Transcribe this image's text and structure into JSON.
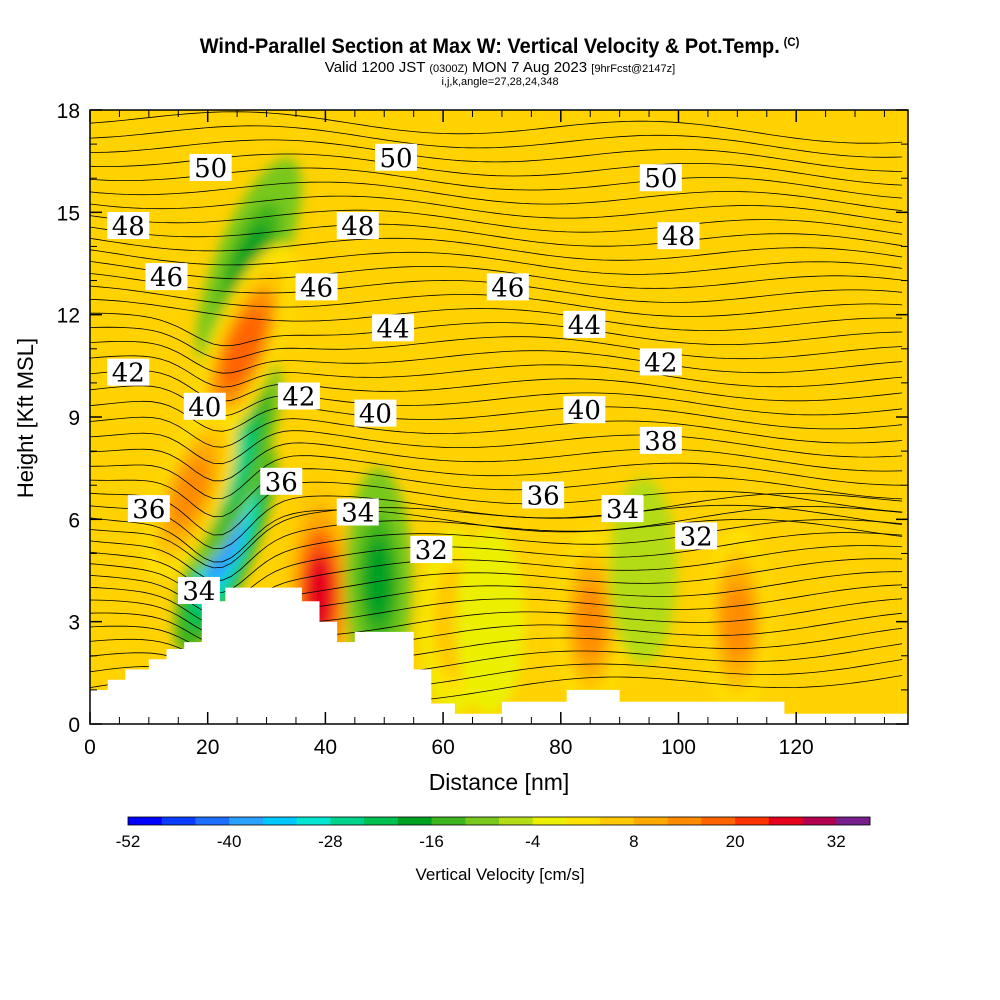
{
  "title": {
    "main": "Wind-Parallel Section at Max W: Vertical Velocity & Pot.Temp.",
    "copyright": "(C)",
    "valid_prefix": "Valid 1200 JST",
    "valid_utc": "(0300Z)",
    "valid_date": "MON 7 Aug 2023",
    "forecast": "[9hrFcst@2147z]",
    "indices": "i,j,k,angle=27,28,24,348"
  },
  "chart_data": {
    "type": "heatmap",
    "xlabel": "Distance [nm]",
    "ylabel": "Height [Kft MSL]",
    "xlim": [
      0,
      139
    ],
    "ylim": [
      0,
      18
    ],
    "x_ticks": [
      0,
      20,
      40,
      60,
      80,
      100,
      120
    ],
    "y_ticks": [
      0,
      3,
      6,
      9,
      12,
      15,
      18
    ],
    "colorbar": {
      "label": "Vertical Velocity [cm/s]",
      "tick_labels": [
        -52,
        -40,
        -28,
        -16,
        -4,
        8,
        20,
        32
      ],
      "bins": 22,
      "colors": [
        "#0000ff",
        "#0a3cff",
        "#1e6eff",
        "#2aa0ff",
        "#00c8ff",
        "#00e6d2",
        "#00d28c",
        "#00c050",
        "#00a020",
        "#3cb41e",
        "#78c81e",
        "#b4dc14",
        "#ecf000",
        "#ffe100",
        "#ffc800",
        "#ffaa00",
        "#ff8c00",
        "#ff6400",
        "#ff3200",
        "#e6001e",
        "#b40050",
        "#781e8c"
      ]
    },
    "terrain_profile": [
      [
        0,
        1
      ],
      [
        3,
        1
      ],
      [
        3,
        1.3
      ],
      [
        6,
        1.3
      ],
      [
        6,
        1.6
      ],
      [
        10,
        1.6
      ],
      [
        10,
        1.9
      ],
      [
        13,
        1.9
      ],
      [
        13,
        2.2
      ],
      [
        16,
        2.2
      ],
      [
        16,
        2.4
      ],
      [
        19,
        2.4
      ],
      [
        19,
        3.6
      ],
      [
        23,
        3.6
      ],
      [
        23,
        4
      ],
      [
        36,
        4
      ],
      [
        36,
        3.6
      ],
      [
        39,
        3.6
      ],
      [
        39,
        3
      ],
      [
        42,
        3
      ],
      [
        42,
        2.4
      ],
      [
        45,
        2.4
      ],
      [
        45,
        2.7
      ],
      [
        55,
        2.7
      ],
      [
        55,
        1.6
      ],
      [
        58,
        1.6
      ],
      [
        58,
        0.6
      ],
      [
        62,
        0.6
      ],
      [
        62,
        0.3
      ],
      [
        70,
        0.3
      ],
      [
        70,
        0.65
      ],
      [
        81,
        0.65
      ],
      [
        81,
        1
      ],
      [
        90,
        1
      ],
      [
        90,
        0.65
      ],
      [
        118,
        0.65
      ],
      [
        118,
        0.3
      ],
      [
        139,
        0.3
      ]
    ],
    "vertical_velocity_features": [
      {
        "x": 23,
        "z": 5.2,
        "w": -44
      },
      {
        "x": 24,
        "z": 7.5,
        "w": -30
      },
      {
        "x": 27,
        "z": 13.5,
        "w": -22
      },
      {
        "x": 26,
        "z": 11,
        "w": 22
      },
      {
        "x": 17,
        "z": 6.8,
        "w": 16
      },
      {
        "x": 39,
        "z": 3.8,
        "w": 32
      },
      {
        "x": 49,
        "z": 4.2,
        "w": -22
      },
      {
        "x": 62,
        "z": 3,
        "w": 10
      },
      {
        "x": 68,
        "z": 3,
        "w": -4
      },
      {
        "x": 85,
        "z": 3,
        "w": 20
      },
      {
        "x": 94,
        "z": 4.5,
        "w": -8
      },
      {
        "x": 110,
        "z": 3,
        "w": 18
      }
    ],
    "potential_temperature_labels": [
      {
        "text": "50",
        "x": 20.5,
        "z": 16.3
      },
      {
        "text": "50",
        "x": 52,
        "z": 16.6
      },
      {
        "text": "50",
        "x": 97,
        "z": 16
      },
      {
        "text": "48",
        "x": 6.5,
        "z": 14.6
      },
      {
        "text": "48",
        "x": 45.5,
        "z": 14.6
      },
      {
        "text": "48",
        "x": 100,
        "z": 14.3
      },
      {
        "text": "46",
        "x": 13,
        "z": 13.1
      },
      {
        "text": "46",
        "x": 38.5,
        "z": 12.8
      },
      {
        "text": "46",
        "x": 71,
        "z": 12.8
      },
      {
        "text": "44",
        "x": 51.5,
        "z": 11.6
      },
      {
        "text": "44",
        "x": 84,
        "z": 11.7
      },
      {
        "text": "42",
        "x": 6.5,
        "z": 10.3
      },
      {
        "text": "42",
        "x": 35.5,
        "z": 9.6
      },
      {
        "text": "42",
        "x": 97,
        "z": 10.6
      },
      {
        "text": "40",
        "x": 19.5,
        "z": 9.3
      },
      {
        "text": "40",
        "x": 48.5,
        "z": 9.1
      },
      {
        "text": "40",
        "x": 84,
        "z": 9.2
      },
      {
        "text": "38",
        "x": 97,
        "z": 8.3
      },
      {
        "text": "36",
        "x": 10,
        "z": 6.3
      },
      {
        "text": "36",
        "x": 32.5,
        "z": 7.1
      },
      {
        "text": "36",
        "x": 77,
        "z": 6.7
      },
      {
        "text": "34",
        "x": 45.5,
        "z": 6.2
      },
      {
        "text": "34",
        "x": 90.5,
        "z": 6.3
      },
      {
        "text": "34",
        "x": 18.5,
        "z": 3.9
      },
      {
        "text": "32",
        "x": 58,
        "z": 5.1
      },
      {
        "text": "32",
        "x": 103,
        "z": 5.5
      }
    ]
  }
}
